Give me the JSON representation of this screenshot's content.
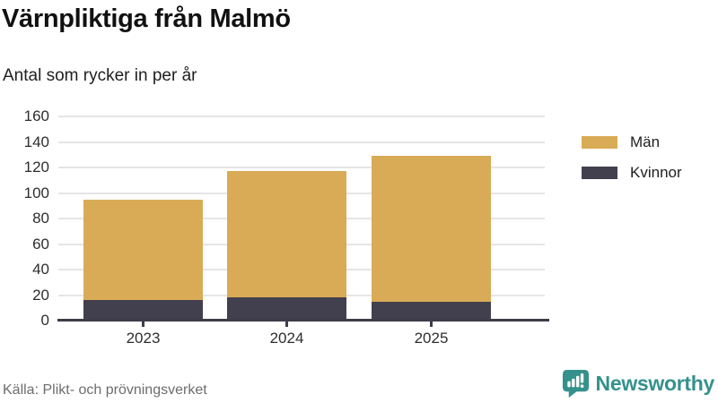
{
  "header": {
    "title": "Värnpliktiga från Malmö",
    "subtitle": "Antal som rycker in per år"
  },
  "chart_data": {
    "type": "bar",
    "stacked": true,
    "categories": [
      "2023",
      "2024",
      "2025"
    ],
    "series": [
      {
        "name": "Män",
        "color": "#d9ab57",
        "values": [
          79,
          99,
          114
        ]
      },
      {
        "name": "Kvinnor",
        "color": "#42404e",
        "values": [
          16,
          18,
          15
        ]
      }
    ],
    "totals": [
      95,
      117,
      129
    ],
    "ylim": [
      0,
      160
    ],
    "yticks": [
      0,
      20,
      40,
      60,
      80,
      100,
      120,
      140,
      160
    ],
    "grid": "horizontal-only",
    "legend_position": "right",
    "xlabel": "",
    "ylabel": ""
  },
  "footer": {
    "source": "Källa: Plikt- och prövningsverket",
    "brand": "Newsworthy"
  },
  "colors": {
    "man": "#d9ab57",
    "kvinnor": "#42404e",
    "axis": "#3e3c49",
    "grid": "#e5e5e5",
    "brand_teal": "#35918c",
    "source_gray": "#6d6d6d"
  }
}
